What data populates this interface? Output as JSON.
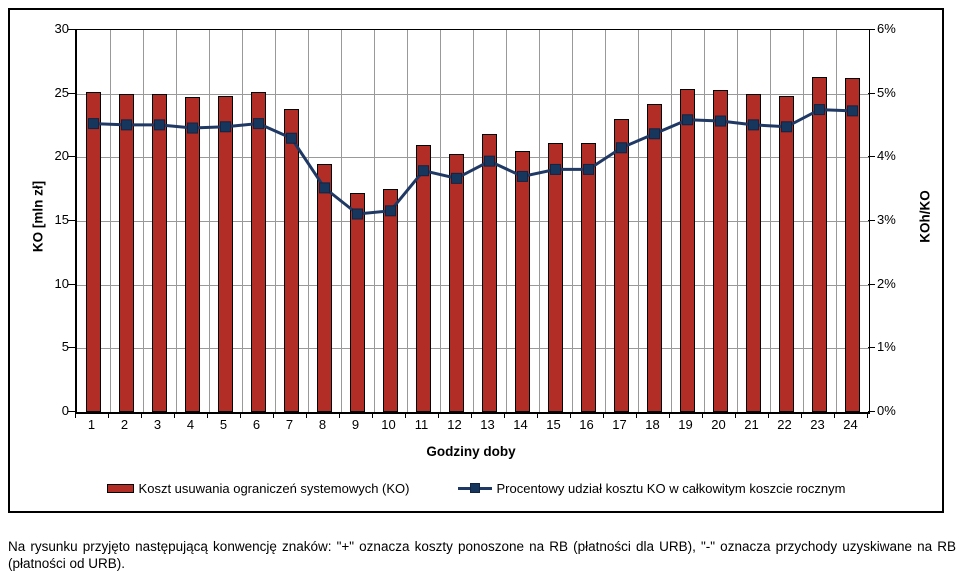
{
  "figure": {
    "caption": "Na rysunku przyjęto następującą konwencję znaków: \"+\" oznacza koszty ponoszone na RB (płatności dla URB), \"-\" oznacza przychody uzyskiwane na RB (płatności od URB)."
  },
  "chart_data": {
    "type": "bar",
    "combo": "bar+line",
    "categories": [
      1,
      2,
      3,
      4,
      5,
      6,
      7,
      8,
      9,
      10,
      11,
      12,
      13,
      14,
      15,
      16,
      17,
      18,
      19,
      20,
      21,
      22,
      23,
      24
    ],
    "series": [
      {
        "name": "Koszt usuwania ograniczeń systemowych (KO)",
        "type": "bar",
        "axis": "left",
        "unit": "mln zł",
        "color": "#B22D26",
        "values": [
          25.1,
          25.0,
          25.0,
          24.7,
          24.8,
          25.1,
          23.8,
          19.5,
          17.2,
          17.5,
          21.0,
          20.3,
          21.8,
          20.5,
          21.1,
          21.1,
          23.0,
          24.2,
          25.4,
          25.3,
          25.0,
          24.8,
          26.3,
          26.2
        ]
      },
      {
        "name": "Procentowy udział kosztu KO w całkowitym koszcie rocznym",
        "type": "line",
        "axis": "right",
        "unit": "%",
        "color": "#1F3864",
        "marker": "square",
        "values": [
          4.53,
          4.51,
          4.51,
          4.46,
          4.48,
          4.53,
          4.3,
          3.52,
          3.11,
          3.16,
          3.79,
          3.67,
          3.94,
          3.7,
          3.81,
          3.81,
          4.15,
          4.37,
          4.59,
          4.57,
          4.51,
          4.48,
          4.75,
          4.73
        ]
      }
    ],
    "xlabel": "Godziny doby",
    "ylabel_left": "KO [mln zł]",
    "ylabel_right": "KOh/KO",
    "ylim_left": [
      0,
      30
    ],
    "ylim_right": [
      0,
      6
    ],
    "yticks_left": [
      "30",
      "25",
      "20",
      "15",
      "10",
      "5",
      "0"
    ],
    "yticks_right": [
      "6%",
      "5%",
      "4%",
      "3%",
      "2%",
      "1%",
      "0%"
    ],
    "grid": true,
    "legend_position": "bottom"
  },
  "colors": {
    "bar_fill": "#B22D26",
    "bar_border": "#000000",
    "line": "#1F3864",
    "marker_fill": "#17365D",
    "gridline": "#999999",
    "axis": "#000000"
  }
}
